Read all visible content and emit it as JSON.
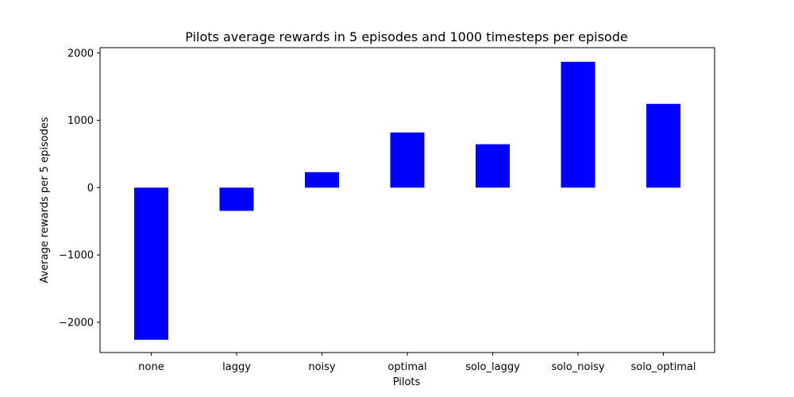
{
  "chart_data": {
    "type": "bar",
    "title": "Pilots average rewards in 5 episodes and 1000 timesteps per episode",
    "xlabel": "Pilots",
    "ylabel": "Average rewards per 5 episodes",
    "categories": [
      "none",
      "laggy",
      "noisy",
      "optimal",
      "solo_laggy",
      "solo_noisy",
      "solo_optimal"
    ],
    "values": [
      -2260,
      -345,
      230,
      820,
      645,
      1870,
      1245
    ],
    "ylim": [
      -2450,
      2080
    ],
    "yticks": [
      -2000,
      -1000,
      0,
      1000,
      2000
    ],
    "ytick_labels": [
      "−2000",
      "−1000",
      "0",
      "1000",
      "2000"
    ],
    "bar_color": "#0000ff",
    "grid": false,
    "legend": "none"
  }
}
